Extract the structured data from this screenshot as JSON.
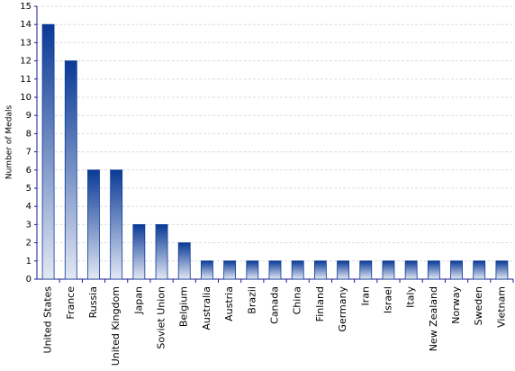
{
  "chart_data": {
    "type": "bar",
    "y_label": "Number of Medals",
    "categories": [
      "United States",
      "France",
      "Russia",
      "United Kingdom",
      "Japan",
      "Soviet Union",
      "Belgium",
      "Australia",
      "Austria",
      "Brazil",
      "Canada",
      "China",
      "Finland",
      "Germany",
      "Iran",
      "Israel",
      "Italy",
      "New Zealand",
      "Norway",
      "Sweden",
      "Vietnam"
    ],
    "values": [
      14,
      12,
      6,
      6,
      3,
      3,
      2,
      1,
      1,
      1,
      1,
      1,
      1,
      1,
      1,
      1,
      1,
      1,
      1,
      1,
      1
    ],
    "color": "#0a3a96",
    "ylim": [
      0,
      15
    ],
    "yticks": [
      0,
      1,
      2,
      3,
      4,
      5,
      6,
      7,
      8,
      9,
      10,
      11,
      12,
      13,
      14,
      15
    ],
    "grid": true
  }
}
